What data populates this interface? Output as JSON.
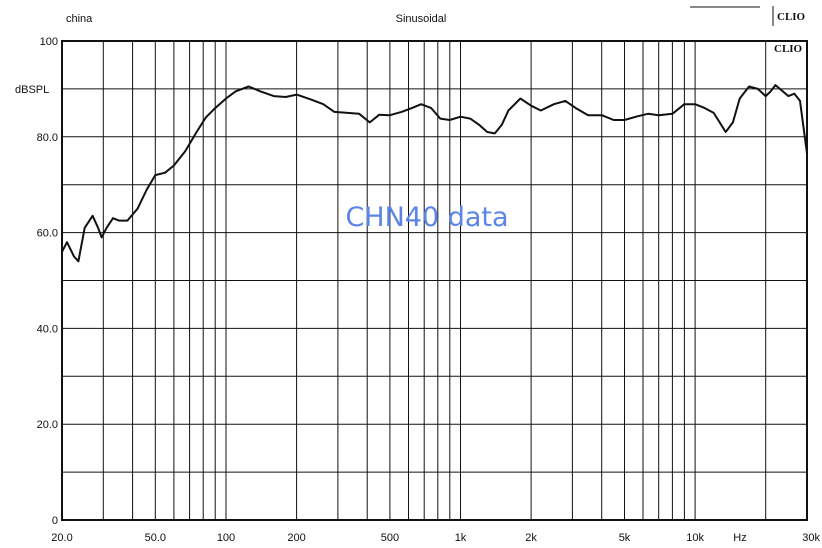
{
  "header": {
    "left_label": "china",
    "center_label": "Sinusoidal",
    "logo_top": "CLIO",
    "logo_inner": "CLIO"
  },
  "watermark": "CHN40 data",
  "colors": {
    "curve": "#111111",
    "grid": "#111111",
    "watermark": "#5b86e8"
  },
  "chart_data": {
    "type": "line",
    "x_scale": "log",
    "xlim": [
      20,
      30000
    ],
    "ylim": [
      0,
      100
    ],
    "grid": true,
    "ylabel": "dBSPL",
    "x_unit_label": "Hz",
    "x_ticks": [
      {
        "value": 20,
        "label": "20.0"
      },
      {
        "value": 50,
        "label": "50.0"
      },
      {
        "value": 100,
        "label": "100"
      },
      {
        "value": 200,
        "label": "200"
      },
      {
        "value": 500,
        "label": "500"
      },
      {
        "value": 1000,
        "label": "1k"
      },
      {
        "value": 2000,
        "label": "2k"
      },
      {
        "value": 5000,
        "label": "5k"
      },
      {
        "value": 10000,
        "label": "10k"
      },
      {
        "value": 30000,
        "label": "30k"
      }
    ],
    "y_ticks": [
      {
        "value": 0,
        "label": "0"
      },
      {
        "value": 20,
        "label": "20.0"
      },
      {
        "value": 40,
        "label": "40.0"
      },
      {
        "value": 60,
        "label": "60.0"
      },
      {
        "value": 80,
        "label": "80.0"
      },
      {
        "value": 100,
        "label": "100"
      }
    ],
    "series": [
      {
        "points": [
          [
            20,
            56
          ],
          [
            21,
            58
          ],
          [
            22.5,
            55
          ],
          [
            23.5,
            54
          ],
          [
            25,
            61
          ],
          [
            27,
            63.5
          ],
          [
            28.5,
            61
          ],
          [
            29.5,
            59
          ],
          [
            31,
            61
          ],
          [
            33,
            63
          ],
          [
            35,
            62.5
          ],
          [
            38,
            62.5
          ],
          [
            42,
            65
          ],
          [
            46,
            69
          ],
          [
            50,
            72
          ],
          [
            55,
            72.5
          ],
          [
            60,
            74
          ],
          [
            67,
            77
          ],
          [
            75,
            81
          ],
          [
            82,
            84
          ],
          [
            90,
            86
          ],
          [
            100,
            88
          ],
          [
            110,
            89.5
          ],
          [
            125,
            90.5
          ],
          [
            140,
            89.5
          ],
          [
            160,
            88.5
          ],
          [
            180,
            88.3
          ],
          [
            200,
            88.8
          ],
          [
            230,
            87.8
          ],
          [
            260,
            86.8
          ],
          [
            290,
            85.2
          ],
          [
            330,
            85
          ],
          [
            370,
            84.8
          ],
          [
            410,
            83
          ],
          [
            450,
            84.6
          ],
          [
            500,
            84.5
          ],
          [
            560,
            85.2
          ],
          [
            620,
            86
          ],
          [
            680,
            86.8
          ],
          [
            750,
            86
          ],
          [
            820,
            83.8
          ],
          [
            900,
            83.5
          ],
          [
            1000,
            84.2
          ],
          [
            1100,
            83.8
          ],
          [
            1200,
            82.5
          ],
          [
            1300,
            81
          ],
          [
            1400,
            80.7
          ],
          [
            1500,
            82.5
          ],
          [
            1600,
            85.5
          ],
          [
            1800,
            88
          ],
          [
            2000,
            86.5
          ],
          [
            2200,
            85.5
          ],
          [
            2500,
            86.8
          ],
          [
            2800,
            87.5
          ],
          [
            3100,
            86
          ],
          [
            3500,
            84.5
          ],
          [
            4000,
            84.5
          ],
          [
            4500,
            83.5
          ],
          [
            5000,
            83.5
          ],
          [
            5600,
            84.2
          ],
          [
            6300,
            84.8
          ],
          [
            7000,
            84.5
          ],
          [
            8000,
            84.8
          ],
          [
            9000,
            86.8
          ],
          [
            10000,
            86.8
          ],
          [
            11000,
            86
          ],
          [
            12000,
            85
          ],
          [
            13500,
            81
          ],
          [
            14500,
            83
          ],
          [
            15500,
            88
          ],
          [
            17000,
            90.5
          ],
          [
            18500,
            90
          ],
          [
            20000,
            88.5
          ],
          [
            21000,
            89.5
          ],
          [
            22000,
            90.8
          ],
          [
            23000,
            90
          ],
          [
            25000,
            88.5
          ],
          [
            26500,
            89
          ],
          [
            28000,
            87.5
          ],
          [
            29000,
            82
          ],
          [
            30000,
            76.5
          ]
        ]
      }
    ]
  }
}
